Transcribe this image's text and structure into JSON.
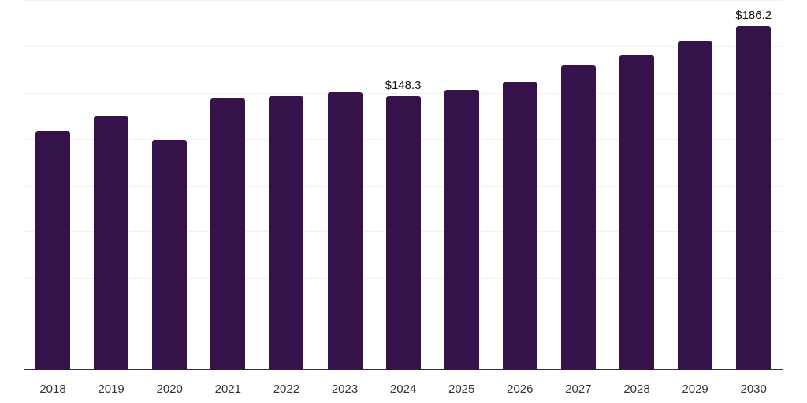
{
  "chart_data": {
    "type": "bar",
    "title": "",
    "xlabel": "",
    "ylabel": "",
    "categories": [
      "2018",
      "2019",
      "2020",
      "2021",
      "2022",
      "2023",
      "2024",
      "2025",
      "2026",
      "2027",
      "2028",
      "2029",
      "2030"
    ],
    "values": [
      129.1,
      137.2,
      124.4,
      147.0,
      148.3,
      150.4,
      148.3,
      151.7,
      156.0,
      164.9,
      170.4,
      178.1,
      186.2
    ],
    "data_labels": [
      {
        "category": "2024",
        "text": "$148.3"
      },
      {
        "category": "2030",
        "text": "$186.2"
      }
    ],
    "ylim": [
      0,
      200
    ],
    "grid": true,
    "legend": null,
    "bar_color": "#36124a"
  }
}
